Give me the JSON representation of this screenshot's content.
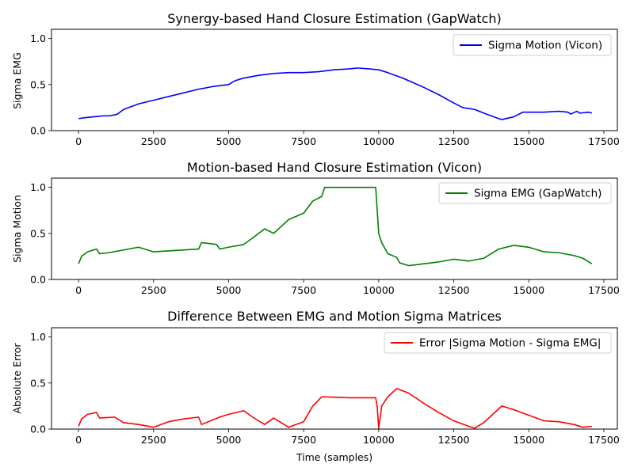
{
  "chart_data": [
    {
      "type": "line",
      "title": "Synergy-based Hand Closure Estimation (GapWatch)",
      "xlabel": "",
      "ylabel": "Sigma EMG",
      "xlim": [
        -900,
        17950
      ],
      "ylim": [
        0.0,
        1.1
      ],
      "xticks": [
        0,
        2500,
        5000,
        7500,
        10000,
        12500,
        15000,
        17500
      ],
      "xtick_labels": [
        "0",
        "2500",
        "5000",
        "7500",
        "10000",
        "12500",
        "15000",
        "17500"
      ],
      "yticks": [
        0.0,
        0.5,
        1.0
      ],
      "ytick_labels": [
        "0.0",
        "0.5",
        "1.0"
      ],
      "legend_position": "upper right",
      "series": [
        {
          "name": "Sigma Motion (Vicon)",
          "color": "#0000ff",
          "x": [
            0,
            200,
            500,
            800,
            1000,
            1200,
            1300,
            1500,
            2000,
            2500,
            3000,
            3500,
            4000,
            4500,
            5000,
            5200,
            5500,
            6000,
            6500,
            7000,
            7500,
            8000,
            8500,
            9000,
            9300,
            9700,
            10000,
            10300,
            10800,
            11500,
            12000,
            12500,
            12800,
            13200,
            13500,
            14000,
            14100,
            14500,
            14800,
            15500,
            16000,
            16300,
            16400,
            16600,
            16700,
            17000,
            17100
          ],
          "values": [
            0.13,
            0.14,
            0.15,
            0.16,
            0.16,
            0.17,
            0.18,
            0.23,
            0.29,
            0.33,
            0.37,
            0.41,
            0.45,
            0.48,
            0.5,
            0.54,
            0.57,
            0.6,
            0.62,
            0.63,
            0.63,
            0.64,
            0.66,
            0.67,
            0.68,
            0.67,
            0.66,
            0.63,
            0.57,
            0.47,
            0.39,
            0.3,
            0.25,
            0.23,
            0.19,
            0.13,
            0.12,
            0.15,
            0.2,
            0.2,
            0.21,
            0.2,
            0.18,
            0.21,
            0.19,
            0.2,
            0.19
          ]
        }
      ]
    },
    {
      "type": "line",
      "title": "Motion-based Hand Closure Estimation (Vicon)",
      "xlabel": "",
      "ylabel": "Sigma Motion",
      "xlim": [
        -900,
        17950
      ],
      "ylim": [
        0.0,
        1.1
      ],
      "xticks": [
        0,
        2500,
        5000,
        7500,
        10000,
        12500,
        15000,
        17500
      ],
      "xtick_labels": [
        "0",
        "2500",
        "5000",
        "7500",
        "10000",
        "12500",
        "15000",
        "17500"
      ],
      "yticks": [
        0.0,
        0.5,
        1.0
      ],
      "ytick_labels": [
        "0.0",
        "0.5",
        "1.0"
      ],
      "legend_position": "upper right",
      "series": [
        {
          "name": "Sigma EMG (GapWatch)",
          "color": "#008000",
          "x": [
            0,
            100,
            300,
            600,
            700,
            1000,
            1500,
            2000,
            2500,
            3000,
            4000,
            4100,
            4600,
            4700,
            5000,
            5500,
            5800,
            6200,
            6500,
            7000,
            7500,
            7800,
            8100,
            8200,
            9000,
            9900,
            10000,
            10100,
            10300,
            10600,
            10700,
            11000,
            11500,
            12000,
            12500,
            13000,
            13500,
            14000,
            14500,
            15000,
            15500,
            16000,
            16500,
            16800,
            17100
          ],
          "values": [
            0.17,
            0.25,
            0.3,
            0.33,
            0.28,
            0.29,
            0.32,
            0.35,
            0.3,
            0.31,
            0.33,
            0.4,
            0.38,
            0.33,
            0.35,
            0.38,
            0.45,
            0.55,
            0.5,
            0.65,
            0.72,
            0.85,
            0.9,
            1.0,
            1.0,
            1.0,
            0.5,
            0.4,
            0.28,
            0.24,
            0.18,
            0.15,
            0.17,
            0.19,
            0.22,
            0.2,
            0.23,
            0.33,
            0.37,
            0.35,
            0.3,
            0.29,
            0.26,
            0.23,
            0.17
          ]
        }
      ]
    },
    {
      "type": "line",
      "title": "Difference Between EMG and Motion Sigma Matrices",
      "xlabel": "Time (samples)",
      "ylabel": "Absolute Error",
      "xlim": [
        -900,
        17950
      ],
      "ylim": [
        0.0,
        1.1
      ],
      "xticks": [
        0,
        2500,
        5000,
        7500,
        10000,
        12500,
        15000,
        17500
      ],
      "xtick_labels": [
        "0",
        "2500",
        "5000",
        "7500",
        "10000",
        "12500",
        "15000",
        "17500"
      ],
      "yticks": [
        0.0,
        0.5,
        1.0
      ],
      "ytick_labels": [
        "0.0",
        "0.5",
        "1.0"
      ],
      "legend_position": "upper right",
      "series": [
        {
          "name": "Error |Sigma Motion - Sigma EMG|",
          "color": "#ff0000",
          "x": [
            0,
            100,
            300,
            600,
            700,
            1200,
            1500,
            2000,
            2500,
            3000,
            3500,
            4000,
            4100,
            4700,
            5000,
            5500,
            5800,
            6200,
            6500,
            7000,
            7500,
            7800,
            8100,
            8200,
            9000,
            9900,
            9950,
            10000,
            10100,
            10300,
            10600,
            11000,
            11500,
            12000,
            12500,
            13000,
            13200,
            13500,
            14000,
            14100,
            14500,
            15000,
            15500,
            16000,
            16500,
            16800,
            17100
          ],
          "values": [
            0.03,
            0.11,
            0.16,
            0.18,
            0.12,
            0.13,
            0.07,
            0.05,
            0.02,
            0.08,
            0.11,
            0.13,
            0.05,
            0.13,
            0.16,
            0.2,
            0.13,
            0.05,
            0.12,
            0.02,
            0.08,
            0.25,
            0.35,
            0.35,
            0.34,
            0.34,
            0.24,
            0.01,
            0.25,
            0.35,
            0.44,
            0.39,
            0.28,
            0.18,
            0.09,
            0.03,
            0.01,
            0.07,
            0.22,
            0.25,
            0.21,
            0.15,
            0.09,
            0.08,
            0.05,
            0.02,
            0.03
          ]
        }
      ]
    }
  ]
}
